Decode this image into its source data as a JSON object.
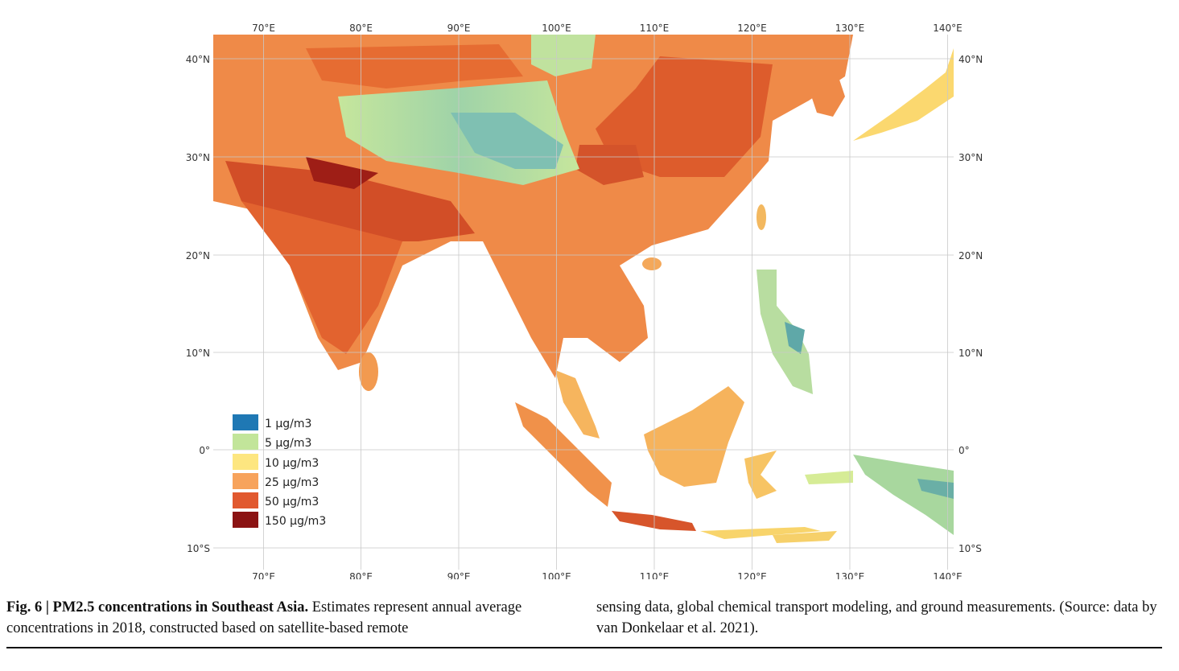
{
  "map": {
    "lon_ticks": [
      "70°E",
      "80°E",
      "90°E",
      "100°E",
      "110°E",
      "120°E",
      "130°E",
      "140°E"
    ],
    "lat_ticks": [
      "40°N",
      "30°N",
      "20°N",
      "10°N",
      "0°",
      "10°S"
    ],
    "extent": {
      "lon": [
        65,
        141
      ],
      "lat": [
        -12,
        42.5
      ]
    },
    "legend": [
      {
        "label": "1 μg/m3",
        "color": "#1f78b4"
      },
      {
        "label": "5 μg/m3",
        "color": "#c2e59a"
      },
      {
        "label": "10 μg/m3",
        "color": "#fde680"
      },
      {
        "label": "25 μg/m3",
        "color": "#f7a35c"
      },
      {
        "label": "50 μg/m3",
        "color": "#e1592f"
      },
      {
        "label": "150 μg/m3",
        "color": "#8b1313"
      }
    ]
  },
  "caption": {
    "fig_label": "Fig. 6 | PM2.5 concentrations in Southeast Asia.",
    "text_col1": " Estimates represent annual average concentrations in 2018, constructed based on satellite-based remote",
    "text_col2": "sensing data, global chemical transport modeling, and ground measurements. (Source: data by van Donkelaar et al. 2021)."
  }
}
